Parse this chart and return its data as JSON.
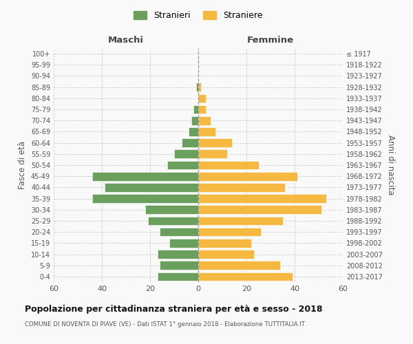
{
  "age_groups": [
    "0-4",
    "5-9",
    "10-14",
    "15-19",
    "20-24",
    "25-29",
    "30-34",
    "35-39",
    "40-44",
    "45-49",
    "50-54",
    "55-59",
    "60-64",
    "65-69",
    "70-74",
    "75-79",
    "80-84",
    "85-89",
    "90-94",
    "95-99",
    "100+"
  ],
  "birth_years": [
    "2013-2017",
    "2008-2012",
    "2003-2007",
    "1998-2002",
    "1993-1997",
    "1988-1992",
    "1983-1987",
    "1978-1982",
    "1973-1977",
    "1968-1972",
    "1963-1967",
    "1958-1962",
    "1953-1957",
    "1948-1952",
    "1943-1947",
    "1938-1942",
    "1933-1937",
    "1928-1932",
    "1923-1927",
    "1918-1922",
    "≤ 1917"
  ],
  "males": [
    17,
    16,
    17,
    12,
    16,
    21,
    22,
    44,
    39,
    44,
    13,
    10,
    7,
    4,
    3,
    2,
    0,
    1,
    0,
    0,
    0
  ],
  "females": [
    39,
    34,
    23,
    22,
    26,
    35,
    51,
    53,
    36,
    41,
    25,
    12,
    14,
    7,
    5,
    3,
    3,
    1,
    0,
    0,
    0
  ],
  "male_color": "#6a9f5e",
  "female_color": "#f5b942",
  "background_color": "#f9f9f9",
  "grid_color": "#cccccc",
  "title": "Popolazione per cittadinanza straniera per età e sesso - 2018",
  "subtitle": "COMUNE DI NOVENTA DI PIAVE (VE) - Dati ISTAT 1° gennaio 2018 - Elaborazione TUTTITALIA.IT",
  "xlabel_left": "Maschi",
  "xlabel_right": "Femmine",
  "ylabel_left": "Fasce di età",
  "ylabel_right": "Anni di nascita",
  "legend_male": "Stranieri",
  "legend_female": "Straniere",
  "xlim": 60
}
